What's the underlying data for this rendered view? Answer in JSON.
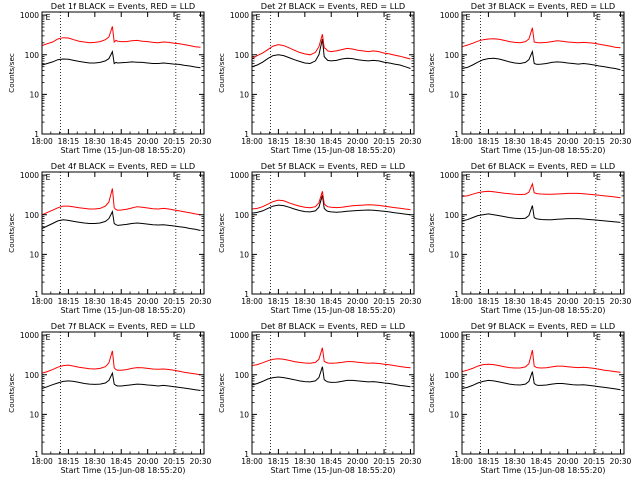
{
  "page": {
    "background": "#ffffff",
    "axis_color": "#000000",
    "events_color": "#000000",
    "lld_color": "#ff0000"
  },
  "shared": {
    "xlabel": "Start Time (15-Jun-08 18:55:20)",
    "ylabel": "Counts/sec",
    "x_ticks": [
      {
        "t": 0,
        "label": "18:00"
      },
      {
        "t": 15,
        "label": "18:15"
      },
      {
        "t": 30,
        "label": "18:30"
      },
      {
        "t": 45,
        "label": "18:45"
      },
      {
        "t": 60,
        "label": "20:00"
      },
      {
        "t": 75,
        "label": "20:15"
      },
      {
        "t": 90,
        "label": "20:30"
      }
    ],
    "y_ticks": [
      {
        "v": 1,
        "label": "1"
      },
      {
        "v": 10,
        "label": "10"
      },
      {
        "v": 100,
        "label": "100"
      },
      {
        "v": 1000,
        "label": "1000"
      }
    ],
    "y_log_range": [
      1,
      1200
    ],
    "x_range": [
      0,
      92
    ],
    "marker_lines_t": [
      10.5,
      76
    ],
    "corner_markers": [
      "E",
      "E"
    ],
    "corner_markers_t": [
      2,
      76
    ]
  },
  "chart_data": [
    {
      "type": "line",
      "title": "Det 1f BLACK = Events, RED = LLD",
      "x": [
        0,
        3,
        6,
        9,
        12,
        15,
        18,
        21,
        24,
        27,
        30,
        33,
        36,
        38,
        40,
        41,
        42,
        43,
        45,
        48,
        51,
        54,
        57,
        60,
        63,
        66,
        69,
        72,
        75,
        78,
        81,
        84,
        87,
        90
      ],
      "series": [
        {
          "name": "Events",
          "color": "#000000",
          "values": [
            55,
            60,
            66,
            75,
            78,
            77,
            72,
            68,
            65,
            62,
            62,
            64,
            70,
            80,
            120,
            60,
            64,
            62,
            63,
            64,
            66,
            65,
            64,
            62,
            60,
            60,
            62,
            60,
            58,
            57,
            54,
            52,
            49,
            47
          ]
        },
        {
          "name": "LLD",
          "color": "#ff0000",
          "values": [
            170,
            190,
            210,
            250,
            270,
            265,
            240,
            220,
            210,
            200,
            205,
            215,
            240,
            280,
            520,
            210,
            230,
            220,
            215,
            215,
            225,
            230,
            220,
            215,
            205,
            200,
            210,
            205,
            195,
            190,
            180,
            170,
            160,
            155
          ]
        }
      ]
    },
    {
      "type": "line",
      "title": "Det 2f BLACK = Events, RED = LLD",
      "x": [
        0,
        3,
        6,
        9,
        12,
        15,
        18,
        21,
        24,
        27,
        30,
        33,
        36,
        38,
        40,
        41,
        42,
        43,
        45,
        48,
        51,
        54,
        57,
        60,
        63,
        66,
        69,
        72,
        75,
        78,
        81,
        84,
        87,
        90
      ],
      "series": [
        {
          "name": "Events",
          "color": "#000000",
          "values": [
            50,
            55,
            65,
            80,
            95,
            100,
            95,
            85,
            75,
            68,
            62,
            60,
            70,
            100,
            250,
            90,
            80,
            72,
            70,
            72,
            78,
            82,
            80,
            75,
            72,
            70,
            72,
            70,
            65,
            62,
            58,
            55,
            50,
            45
          ]
        },
        {
          "name": "LLD",
          "color": "#ff0000",
          "values": [
            80,
            95,
            110,
            135,
            165,
            180,
            170,
            150,
            130,
            115,
            105,
            100,
            115,
            160,
            330,
            150,
            140,
            125,
            120,
            125,
            135,
            145,
            140,
            130,
            125,
            120,
            125,
            120,
            110,
            105,
            98,
            92,
            85,
            78
          ]
        }
      ]
    },
    {
      "type": "line",
      "title": "Det 3f BLACK = Events, RED = LLD",
      "x": [
        0,
        3,
        6,
        9,
        12,
        15,
        18,
        21,
        24,
        27,
        30,
        33,
        36,
        38,
        40,
        41,
        42,
        43,
        45,
        48,
        51,
        54,
        57,
        60,
        63,
        66,
        69,
        72,
        75,
        78,
        81,
        84,
        87,
        90
      ],
      "series": [
        {
          "name": "Events",
          "color": "#000000",
          "values": [
            45,
            48,
            55,
            65,
            75,
            80,
            82,
            78,
            72,
            66,
            62,
            60,
            64,
            75,
            120,
            60,
            58,
            57,
            58,
            60,
            64,
            66,
            65,
            62,
            60,
            58,
            60,
            58,
            55,
            52,
            50,
            47,
            45,
            42
          ]
        },
        {
          "name": "LLD",
          "color": "#ff0000",
          "values": [
            160,
            175,
            195,
            220,
            240,
            250,
            255,
            245,
            230,
            215,
            205,
            200,
            215,
            250,
            480,
            210,
            205,
            200,
            200,
            205,
            215,
            225,
            220,
            210,
            205,
            200,
            205,
            200,
            195,
            185,
            175,
            165,
            155,
            150
          ]
        }
      ]
    },
    {
      "type": "line",
      "title": "Det 4f BLACK = Events, RED = LLD",
      "x": [
        0,
        3,
        6,
        9,
        12,
        15,
        18,
        21,
        24,
        27,
        30,
        33,
        36,
        38,
        40,
        41,
        42,
        43,
        45,
        48,
        51,
        54,
        57,
        60,
        63,
        66,
        69,
        72,
        75,
        78,
        81,
        84,
        87,
        90
      ],
      "series": [
        {
          "name": "Events",
          "color": "#000000",
          "values": [
            45,
            52,
            60,
            70,
            75,
            72,
            68,
            65,
            62,
            60,
            60,
            62,
            68,
            80,
            120,
            60,
            56,
            54,
            55,
            57,
            60,
            62,
            60,
            58,
            56,
            55,
            56,
            54,
            52,
            50,
            48,
            45,
            43,
            40
          ]
        },
        {
          "name": "LLD",
          "color": "#ff0000",
          "values": [
            100,
            115,
            130,
            150,
            165,
            165,
            158,
            150,
            145,
            140,
            140,
            145,
            165,
            210,
            460,
            150,
            135,
            130,
            132,
            137,
            148,
            160,
            155,
            148,
            142,
            140,
            145,
            140,
            132,
            125,
            118,
            112,
            105,
            100
          ]
        }
      ]
    },
    {
      "type": "line",
      "title": "Det 5f BLACK = Events, RED = LLD",
      "x": [
        0,
        3,
        6,
        9,
        12,
        15,
        18,
        21,
        24,
        27,
        30,
        33,
        36,
        38,
        40,
        41,
        42,
        43,
        45,
        48,
        51,
        54,
        57,
        60,
        63,
        66,
        69,
        72,
        75,
        78,
        81,
        84,
        87,
        90
      ],
      "series": [
        {
          "name": "Events",
          "color": "#000000",
          "values": [
            110,
            115,
            125,
            145,
            165,
            175,
            170,
            155,
            140,
            128,
            120,
            118,
            125,
            155,
            310,
            145,
            130,
            122,
            118,
            116,
            118,
            122,
            125,
            128,
            130,
            132,
            130,
            126,
            122,
            118,
            112,
            108,
            104,
            100
          ]
        },
        {
          "name": "LLD",
          "color": "#ff0000",
          "values": [
            140,
            145,
            160,
            185,
            215,
            235,
            225,
            200,
            180,
            165,
            155,
            150,
            160,
            200,
            390,
            190,
            170,
            160,
            155,
            152,
            155,
            162,
            168,
            172,
            175,
            178,
            176,
            172,
            165,
            158,
            152,
            146,
            140,
            135
          ]
        }
      ]
    },
    {
      "type": "line",
      "title": "Det 6f BLACK = Events, RED = LLD",
      "x": [
        0,
        3,
        6,
        9,
        12,
        15,
        18,
        21,
        24,
        27,
        30,
        33,
        36,
        38,
        40,
        41,
        42,
        43,
        45,
        48,
        51,
        54,
        57,
        60,
        63,
        66,
        69,
        72,
        75,
        78,
        81,
        84,
        87,
        90
      ],
      "series": [
        {
          "name": "Events",
          "color": "#000000",
          "values": [
            70,
            75,
            85,
            95,
            100,
            105,
            100,
            95,
            90,
            85,
            82,
            80,
            82,
            95,
            170,
            85,
            80,
            78,
            76,
            75,
            75,
            77,
            78,
            80,
            80,
            80,
            78,
            76,
            74,
            72,
            70,
            68,
            66,
            64
          ]
        },
        {
          "name": "LLD",
          "color": "#ff0000",
          "values": [
            290,
            300,
            330,
            360,
            380,
            390,
            380,
            365,
            350,
            340,
            330,
            325,
            330,
            370,
            600,
            360,
            345,
            340,
            335,
            330,
            330,
            335,
            340,
            345,
            345,
            345,
            340,
            330,
            320,
            310,
            300,
            290,
            280,
            270
          ]
        }
      ]
    },
    {
      "type": "line",
      "title": "Det 7f BLACK = Events, RED = LLD",
      "x": [
        0,
        3,
        6,
        9,
        12,
        15,
        18,
        21,
        24,
        27,
        30,
        33,
        36,
        38,
        40,
        41,
        42,
        43,
        45,
        48,
        51,
        54,
        57,
        60,
        63,
        66,
        69,
        72,
        75,
        78,
        81,
        84,
        87,
        90
      ],
      "series": [
        {
          "name": "Events",
          "color": "#000000",
          "values": [
            45,
            50,
            56,
            62,
            68,
            70,
            68,
            64,
            60,
            58,
            57,
            58,
            62,
            72,
            110,
            58,
            54,
            52,
            52,
            54,
            56,
            58,
            57,
            55,
            54,
            52,
            54,
            52,
            50,
            48,
            46,
            44,
            42,
            40
          ]
        },
        {
          "name": "LLD",
          "color": "#ff0000",
          "values": [
            110,
            120,
            135,
            155,
            170,
            175,
            165,
            155,
            148,
            142,
            140,
            145,
            160,
            200,
            400,
            150,
            135,
            130,
            130,
            135,
            145,
            152,
            150,
            145,
            140,
            138,
            140,
            136,
            130,
            122,
            115,
            110,
            105,
            100
          ]
        }
      ]
    },
    {
      "type": "line",
      "title": "Det 8f BLACK = Events, RED = LLD",
      "x": [
        0,
        3,
        6,
        9,
        12,
        15,
        18,
        21,
        24,
        27,
        30,
        33,
        36,
        38,
        40,
        41,
        42,
        43,
        45,
        48,
        51,
        54,
        57,
        60,
        63,
        66,
        69,
        72,
        75,
        78,
        81,
        84,
        87,
        90
      ],
      "series": [
        {
          "name": "Events",
          "color": "#000000",
          "values": [
            55,
            60,
            68,
            78,
            85,
            88,
            85,
            80,
            75,
            70,
            67,
            66,
            70,
            85,
            160,
            75,
            70,
            66,
            64,
            65,
            68,
            72,
            72,
            70,
            68,
            66,
            67,
            65,
            62,
            60,
            57,
            54,
            52,
            50
          ]
        },
        {
          "name": "LLD",
          "color": "#ff0000",
          "values": [
            170,
            180,
            200,
            225,
            245,
            255,
            245,
            230,
            215,
            205,
            198,
            195,
            205,
            245,
            480,
            220,
            205,
            198,
            195,
            198,
            205,
            215,
            215,
            208,
            200,
            195,
            198,
            192,
            185,
            178,
            170,
            162,
            155,
            150
          ]
        }
      ]
    },
    {
      "type": "line",
      "title": "Det 9f BLACK = Events, RED = LLD",
      "x": [
        0,
        3,
        6,
        9,
        12,
        15,
        18,
        21,
        24,
        27,
        30,
        33,
        36,
        38,
        40,
        41,
        42,
        43,
        45,
        48,
        51,
        54,
        57,
        60,
        63,
        66,
        69,
        72,
        75,
        78,
        81,
        84,
        87,
        90
      ],
      "series": [
        {
          "name": "Events",
          "color": "#000000",
          "values": [
            45,
            48,
            54,
            62,
            68,
            72,
            70,
            66,
            62,
            58,
            56,
            55,
            58,
            68,
            120,
            60,
            56,
            54,
            54,
            55,
            58,
            60,
            60,
            58,
            56,
            55,
            56,
            54,
            52,
            50,
            48,
            46,
            44,
            42
          ]
        },
        {
          "name": "LLD",
          "color": "#ff0000",
          "values": [
            120,
            130,
            145,
            165,
            180,
            185,
            180,
            170,
            160,
            152,
            148,
            148,
            158,
            190,
            420,
            165,
            155,
            150,
            148,
            150,
            158,
            165,
            165,
            160,
            155,
            152,
            155,
            150,
            145,
            138,
            130,
            125,
            120,
            115
          ]
        }
      ]
    }
  ]
}
